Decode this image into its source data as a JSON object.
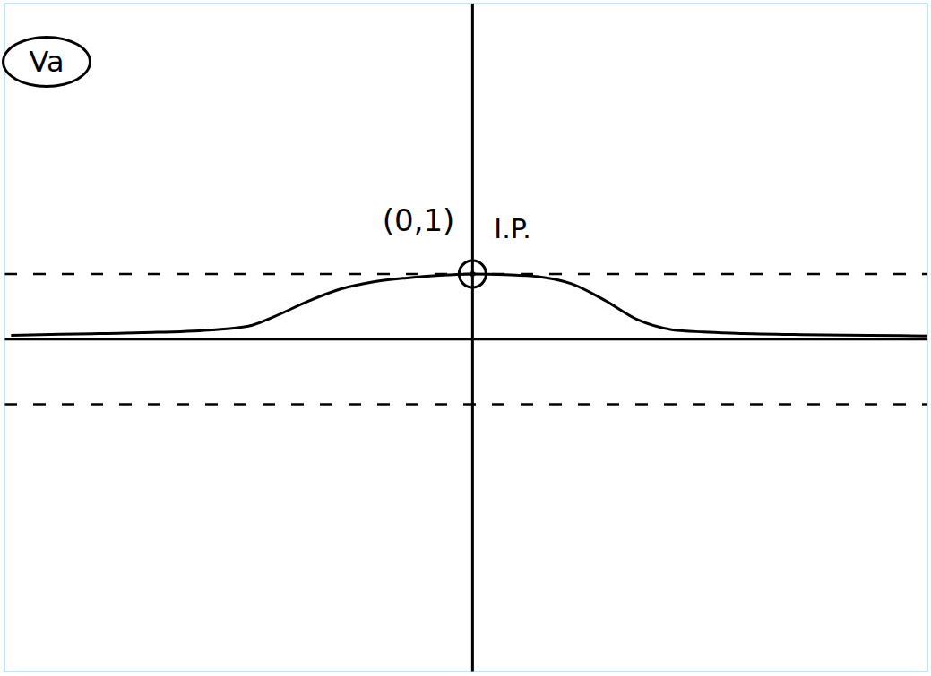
{
  "chart_data": {
    "type": "line",
    "title": "Va",
    "x": [
      -7,
      -6,
      -5,
      -4,
      -3.4,
      -3,
      -2.5,
      -2,
      -1.5,
      -1,
      -0.5,
      0,
      0.5,
      1,
      1.5,
      2,
      2.5,
      3,
      3.5,
      4,
      5,
      6,
      6.9
    ],
    "values": [
      0.06,
      0.08,
      0.1,
      0.14,
      0.2,
      0.35,
      0.58,
      0.77,
      0.88,
      0.94,
      0.98,
      1,
      0.99,
      0.96,
      0.85,
      0.6,
      0.3,
      0.15,
      0.11,
      0.09,
      0.07,
      0.06,
      0.05
    ],
    "color": "#000000",
    "xlim": [
      -7.1,
      6.9
    ],
    "ylim": [
      -5.1,
      5.15
    ],
    "xticks": [
      -7,
      -6,
      -5,
      -4,
      -3,
      -2,
      -1,
      0,
      1,
      2,
      3,
      4,
      5,
      6
    ],
    "yticks": [
      -5,
      -4,
      -3,
      -2,
      -1,
      0,
      1,
      2,
      3,
      4,
      5
    ],
    "grid": true,
    "tick_labels": false,
    "hlines": [
      {
        "y": 1,
        "line_style": "dashed"
      },
      {
        "y": -1,
        "line_style": "dashed"
      }
    ],
    "annotations": [
      {
        "text": "(0,1)",
        "x": 0,
        "y": 1
      },
      {
        "text": "I.P.",
        "x": 0,
        "y": 1
      }
    ]
  }
}
